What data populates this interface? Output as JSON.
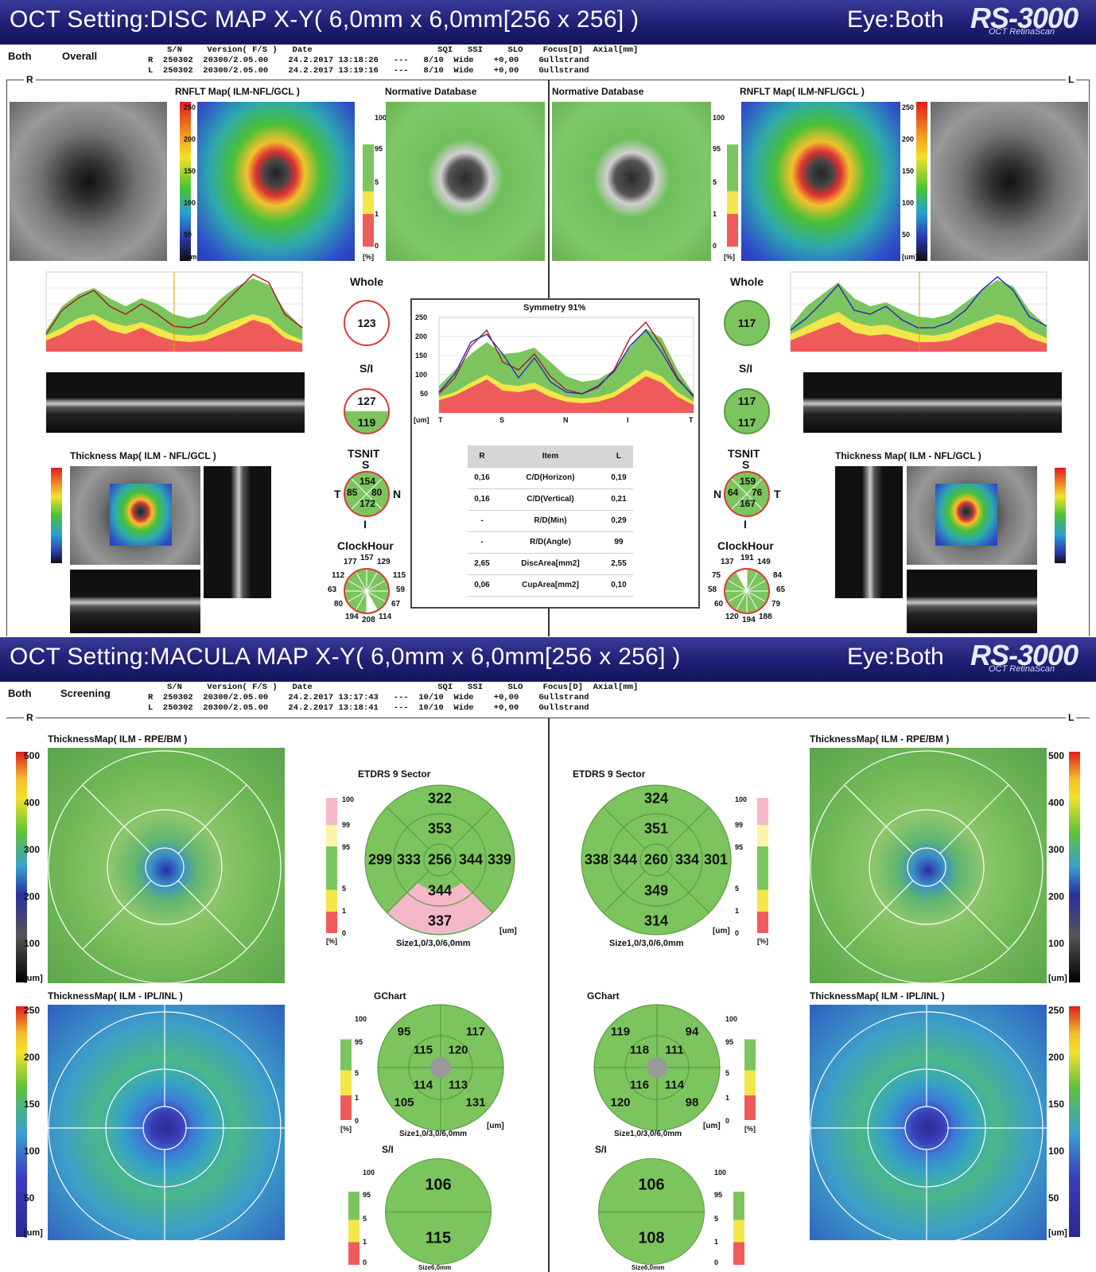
{
  "disc": {
    "title": "OCT Setting:DISC MAP X-Y( 6,0mm x 6,0mm[256 x 256] )",
    "eye": "Eye:Both",
    "logo": "RS-3000",
    "logo_sub": "OCT RetinaScan",
    "mode_left": "Both",
    "mode_right": "Overall",
    "info_header": "S/N     Version( F/S )   Date                         SQI   SSI     SLO    Focus[D]  Axial[mm]",
    "info_r": "R  250302  20300/2.05.00    24.2.2017 13:18:26   ---   8/10  Wide    +0,00    Gullstrand",
    "info_l": "L  250302  20300/2.05.00    24.2.2017 13:19:16   ---   8/10  Wide    +0,00    Gullstrand",
    "side_r": "R",
    "side_l": "L",
    "rnflt_label": "RNFLT Map( ILM-NFL/GCL )",
    "normative_label": "Normative Database",
    "thickness_label": "Thickness Map( ILM - NFL/GCL )",
    "scale_ticks": [
      "250",
      "200",
      "150",
      "100",
      "50",
      "[um]"
    ],
    "norm_ticks": [
      "100",
      "95",
      "5",
      "1",
      "0",
      "[%]"
    ],
    "whole_label": "Whole",
    "si_label": "S/I",
    "tsnit_label": "TSNIT",
    "clock_label": "ClockHour",
    "graph_ylabels": [
      "250",
      "200",
      "150",
      "100",
      "50"
    ],
    "graph_xunit": "[um]",
    "graph_um": "[um]",
    "right_eye": {
      "whole": "123",
      "s": "127",
      "i": "119",
      "tsnit": {
        "S": "154",
        "T": "85",
        "N": "80",
        "I": "172"
      },
      "tsnit_letters": {
        "S": "S",
        "T": "T",
        "N": "N",
        "I": "I"
      },
      "clock": [
        "177",
        "157",
        "129",
        "112",
        "115",
        "63",
        "59",
        "80",
        "67",
        "194",
        "208",
        "114"
      ]
    },
    "left_eye": {
      "whole": "117",
      "s": "117",
      "i": "117",
      "tsnit": {
        "S": "159",
        "N": "64",
        "T": "76",
        "I": "167"
      },
      "tsnit_letters": {
        "S": "S",
        "T": "T",
        "N": "N",
        "I": "I"
      },
      "clock": [
        "137",
        "191",
        "149",
        "75",
        "84",
        "58",
        "65",
        "60",
        "79",
        "120",
        "194",
        "188"
      ]
    },
    "symmetry": {
      "title": "Symmetry 91%",
      "yticks": [
        "250",
        "200",
        "150",
        "100",
        "50"
      ],
      "xticks": [
        "T",
        "S",
        "N",
        "I",
        "T"
      ],
      "yunit": "[um]"
    },
    "table": {
      "headers": [
        "R",
        "Item",
        "L"
      ],
      "rows": [
        [
          "0,16",
          "C/D(Horizon)",
          "0,19"
        ],
        [
          "0,16",
          "C/D(Vertical)",
          "0,21"
        ],
        [
          "-",
          "R/D(Min)",
          "0,29"
        ],
        [
          "-",
          "R/D(Angle)",
          "99"
        ],
        [
          "2,65",
          "DiscArea[mm2]",
          "2,55"
        ],
        [
          "0,06",
          "CupArea[mm2]",
          "0,10"
        ]
      ]
    }
  },
  "macula": {
    "title": "OCT Setting:MACULA MAP X-Y( 6,0mm x 6,0mm[256 x 256] )",
    "eye": "Eye:Both",
    "logo": "RS-3000",
    "logo_sub": "OCT RetinaScan",
    "mode_left": "Both",
    "mode_right": "Screening",
    "info_header": "S/N     Version( F/S )   Date                         SQI   SSI     SLO    Focus[D]  Axial[mm]",
    "info_r": "R  250302  20300/2.05.00    24.2.2017 13:17:43   ---  10/10  Wide    +0,00    Gullstrand",
    "info_l": "L  250302  20300/2.05.00    24.2.2017 13:18:41   ---  10/10  Wide    +0,00    Gullstrand",
    "side_r": "R",
    "side_l": "L",
    "rpe_label": "ThicknessMap( ILM - RPE/BM )",
    "ipl_label": "ThicknessMap( ILM - IPL/INL )",
    "rpe_ticks": [
      "500",
      "400",
      "300",
      "200",
      "100",
      "[um]"
    ],
    "ipl_ticks": [
      "250",
      "200",
      "150",
      "100",
      "50",
      "[um]"
    ],
    "etdrs_label": "ETDRS 9 Sector",
    "gchart_label": "GChart",
    "si_label": "S/I",
    "size_label": "Size1,0/3,0/6,0mm",
    "size_small": "Size6,0mm",
    "um": "[um]",
    "pct": "[%]",
    "leg_ticks": [
      "100",
      "95",
      "5",
      "1",
      "0"
    ],
    "leg_ticks_etdrs": [
      "100",
      "99",
      "95",
      "5",
      "1",
      "0"
    ],
    "right_eye": {
      "etdrs": {
        "outer_s": "322",
        "inner_s": "353",
        "outer_t": "299",
        "inner_t": "333",
        "center": "256",
        "inner_n": "344",
        "outer_n": "339",
        "inner_i": "344",
        "outer_i": "337"
      },
      "gchart": {
        "st": "95",
        "sn": "117",
        "ist": "115",
        "isn": "120",
        "iit": "114",
        "iin": "113",
        "it": "105",
        "in": "131"
      },
      "si": {
        "s": "106",
        "i": "115"
      }
    },
    "left_eye": {
      "etdrs": {
        "outer_s": "324",
        "inner_s": "351",
        "outer_n": "338",
        "inner_n": "344",
        "center": "260",
        "inner_t": "334",
        "outer_t": "301",
        "inner_i": "349",
        "outer_i": "314"
      },
      "gchart": {
        "sn": "119",
        "st": "94",
        "isn": "118",
        "ist": "111",
        "iin": "116",
        "iit": "114",
        "in": "120",
        "it": "98"
      },
      "si": {
        "s": "106",
        "i": "108"
      }
    }
  },
  "colors": {
    "title_bg": "#1f1f74",
    "normal_green": "#7cc55e",
    "borderline_yellow": "#f3e64a",
    "abnormal_red": "#ef5b5b",
    "pink": "#f5b8c8"
  }
}
